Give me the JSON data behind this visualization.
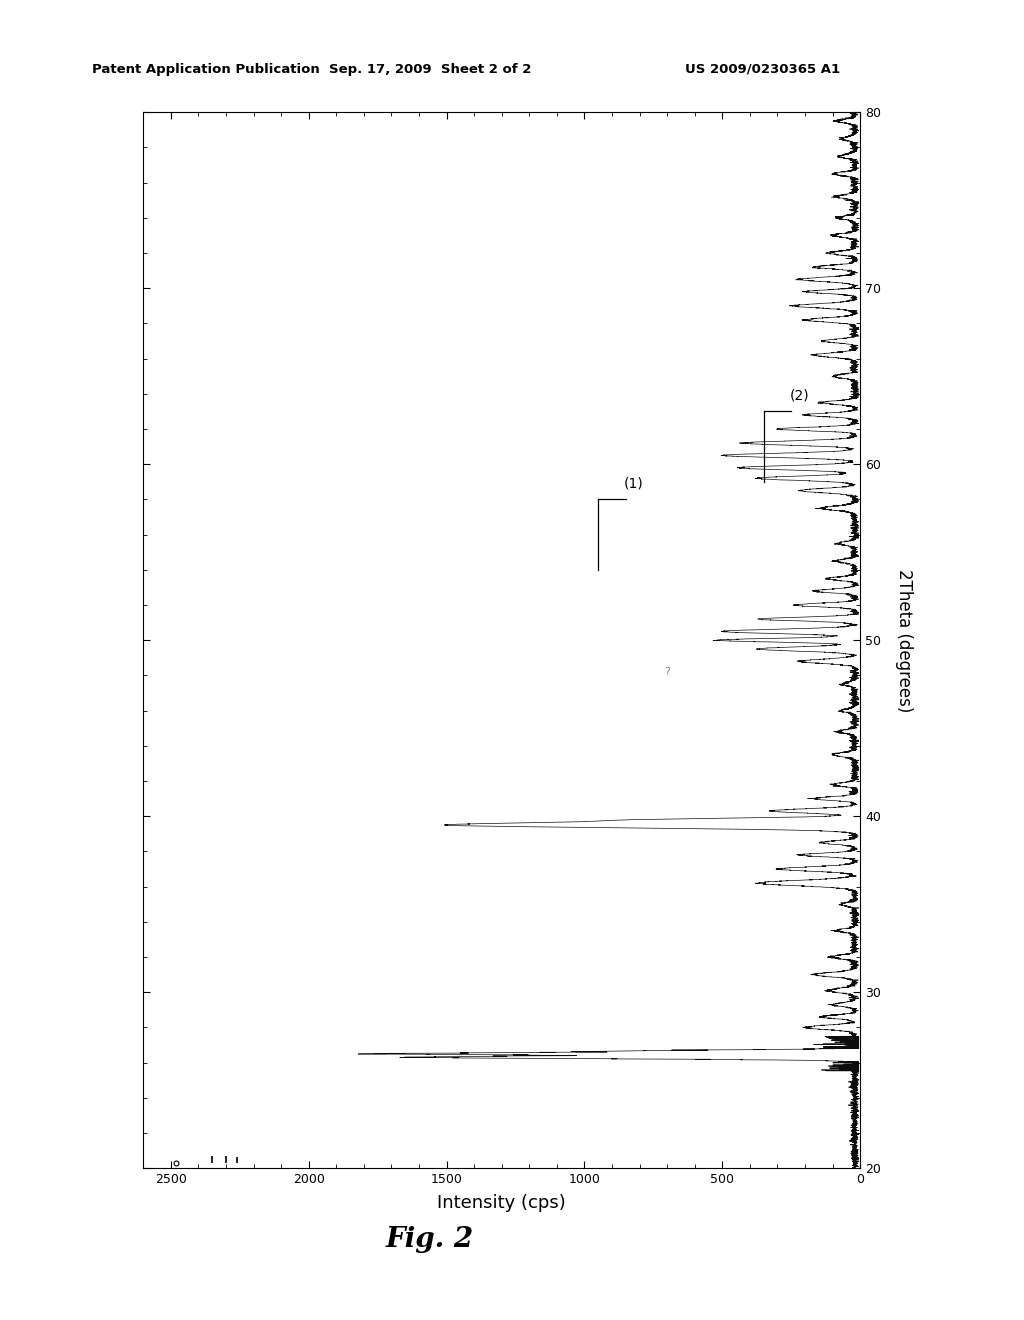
{
  "title_left": "Patent Application Publication",
  "title_center": "Sep. 17, 2009  Sheet 2 of 2",
  "title_right": "US 2009/0230365 A1",
  "fig_label": "Fig. 2",
  "xlabel": "Intensity (cps)",
  "ylabel": "2Theta (degrees)",
  "xlim_reversed": [
    2600,
    0
  ],
  "ylim": [
    20,
    80
  ],
  "xticks": [
    0,
    500,
    1000,
    1500,
    2000,
    2500
  ],
  "yticks": [
    20,
    30,
    40,
    50,
    60,
    70,
    80
  ],
  "annotation1": "(1)",
  "annotation2": "(2)",
  "background": "#ffffff",
  "line_color": "#000000"
}
